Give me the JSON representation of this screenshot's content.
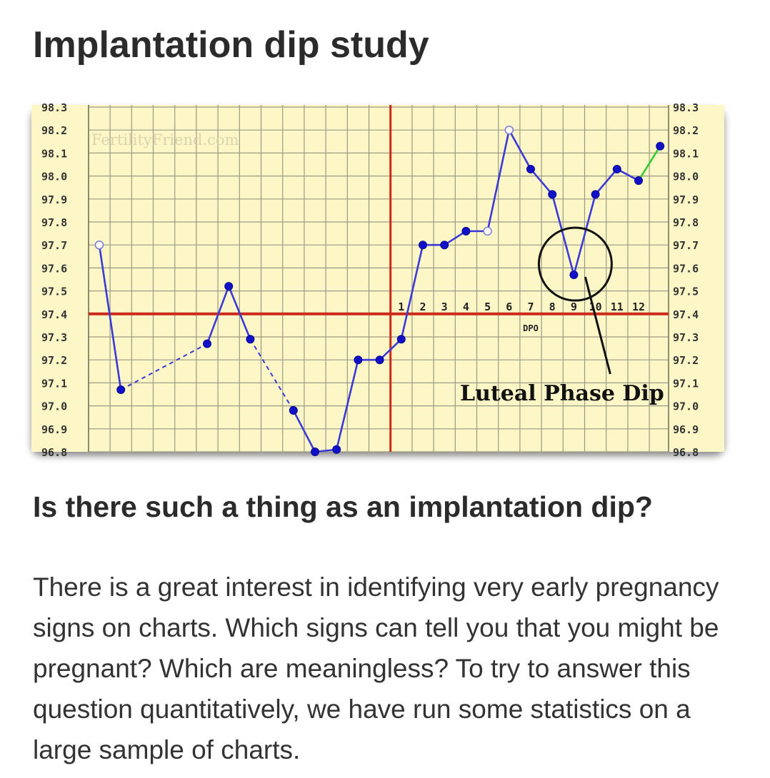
{
  "page": {
    "title": "Implantation dip study",
    "section_heading": "Is there such a thing as an implantation dip?",
    "body_text": "There is a great interest in identifying very early pregnancy signs on charts. Which signs can tell you that you might be pregnant? Which are meaningless? To try to answer this question quantitatively, we have run some statistics on a large sample of charts."
  },
  "chart_data": {
    "type": "line",
    "watermark": "FertilityFriend.com",
    "y_ticks": [
      "98.3",
      "98.2",
      "98.1",
      "98.0",
      "97.9",
      "97.8",
      "97.7",
      "97.6",
      "97.5",
      "97.4",
      "97.3",
      "97.2",
      "97.1",
      "97.0",
      "96.9",
      "96.8"
    ],
    "ylim": [
      96.8,
      98.3
    ],
    "coverline": 97.4,
    "ovulation_day": 14,
    "dpo_labels": [
      "1",
      "2",
      "3",
      "4",
      "5",
      "6",
      "7",
      "8",
      "9",
      "10",
      "11",
      "12"
    ],
    "dpo_axis_label": "DPO",
    "annotation": "Luteal Phase Dip",
    "annotation_day": 22,
    "annotation_temp": 97.57,
    "points": [
      {
        "day": 1,
        "temp": 97.7,
        "open": true
      },
      {
        "day": 2,
        "temp": 97.07
      },
      {
        "day": 6,
        "temp": 97.27
      },
      {
        "day": 7,
        "temp": 97.52
      },
      {
        "day": 8,
        "temp": 97.29
      },
      {
        "day": 10,
        "temp": 96.98
      },
      {
        "day": 11,
        "temp": 96.8
      },
      {
        "day": 12,
        "temp": 96.81
      },
      {
        "day": 13,
        "temp": 97.2
      },
      {
        "day": 14,
        "temp": 97.2
      },
      {
        "day": 15,
        "temp": 97.29
      },
      {
        "day": 16,
        "temp": 97.7
      },
      {
        "day": 17,
        "temp": 97.7
      },
      {
        "day": 18,
        "temp": 97.76
      },
      {
        "day": 19,
        "temp": 97.76,
        "open": true
      },
      {
        "day": 20,
        "temp": 98.2,
        "open": true
      },
      {
        "day": 21,
        "temp": 98.03
      },
      {
        "day": 22,
        "temp": 97.92
      },
      {
        "day": 23,
        "temp": 97.57
      },
      {
        "day": 24,
        "temp": 97.92
      },
      {
        "day": 25,
        "temp": 98.03
      },
      {
        "day": 26,
        "temp": 97.98
      },
      {
        "day": 27,
        "temp": 98.13
      }
    ],
    "dashed_segments": [
      [
        2,
        6
      ],
      [
        8,
        10
      ]
    ],
    "green_segment": [
      26,
      27
    ],
    "colors": {
      "background": "#fdf7c8",
      "grid": "#9a9a84",
      "line": "#3a3ad8",
      "point": "#1010c8",
      "red": "#cc2a1a",
      "green": "#33cc33"
    }
  }
}
